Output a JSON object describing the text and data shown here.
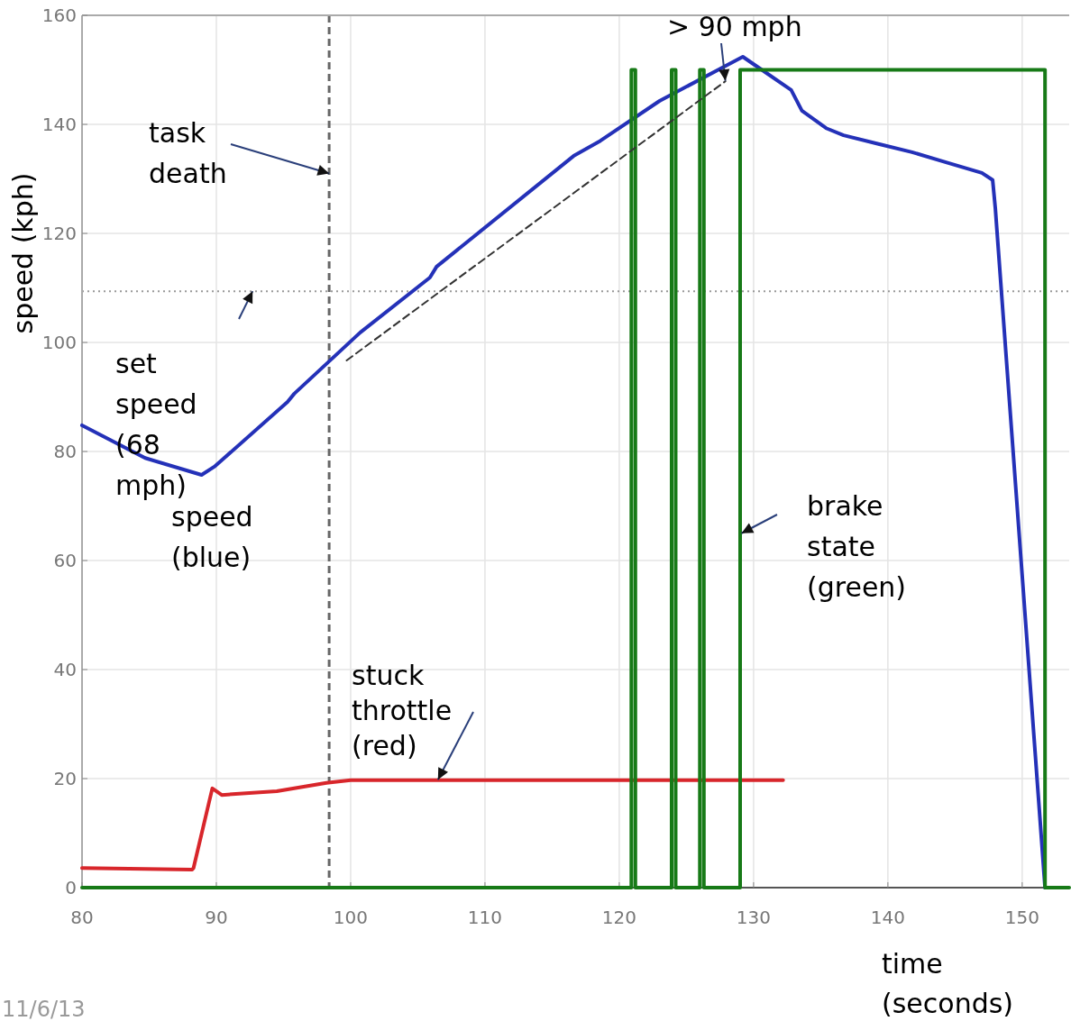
{
  "chart_data": {
    "type": "line",
    "xlabel": "time (seconds)",
    "ylabel": "speed (kph)",
    "xlim": [
      80,
      153.5
    ],
    "ylim": [
      0,
      160
    ],
    "xticks": [
      80,
      90,
      100,
      110,
      120,
      130,
      140,
      150
    ],
    "yticks": [
      0,
      20,
      40,
      60,
      80,
      100,
      120,
      140,
      160
    ],
    "grid": true,
    "marker": "none",
    "series": [
      {
        "color": "#2431b8",
        "x": [
          80,
          84.7,
          88.9,
          89.9,
          95.3,
          95.8,
          100.7,
          105.9,
          106.4,
          116.6,
          118.6,
          123,
          127.9,
          129.2,
          130.2,
          132.8,
          133.6,
          135.4,
          136.7,
          139.3,
          141.8,
          144.5,
          147,
          147.8,
          148,
          151.7
        ],
        "values": [
          84.8,
          78.8,
          75.7,
          77.3,
          89.1,
          90.6,
          101.8,
          111.9,
          113.9,
          134.2,
          137,
          144.3,
          150.7,
          152.4,
          150.7,
          146.3,
          142.5,
          139.3,
          138,
          136.4,
          134.9,
          132.9,
          131.1,
          129.8,
          124.6,
          0
        ]
      },
      {
        "color": "#d8262b",
        "x": [
          80,
          88.2,
          88.3,
          89.7,
          90.4,
          94.5,
          98.2,
          100,
          132.2
        ],
        "values": [
          3.6,
          3.3,
          3.6,
          18.2,
          17,
          17.7,
          19.2,
          19.7,
          19.7
        ]
      },
      {
        "type": "step",
        "color": "#177a17",
        "x": [
          80,
          120.9,
          121.2,
          123.9,
          124.2,
          126,
          126.3,
          129,
          151.7,
          153.5
        ],
        "values": [
          0,
          150,
          0,
          150,
          0,
          150,
          0,
          150,
          0,
          0
        ]
      },
      {
        "color": "#333333",
        "line_style": "dashed",
        "x": [
          99.7,
          127.9
        ],
        "values": [
          96.7,
          147.9
        ]
      }
    ],
    "ref_lines": [
      {
        "axis": "y",
        "value": 109.4,
        "color": "#999999",
        "line_style": "dotted"
      },
      {
        "axis": "x",
        "value": 98.4,
        "color": "#666666",
        "line_style": "dashed"
      }
    ],
    "annotations": [
      {
        "text": "task death",
        "x": 98.4,
        "y": 131
      },
      {
        "text": "set speed (68 mph)",
        "x": 92.7,
        "y": 109.4
      },
      "speed (blue)",
      {
        "text": "> 90 mph",
        "x": 127.9,
        "y": 148
      },
      {
        "text": "brake state (green)",
        "x": 129.1,
        "y": 65
      },
      {
        "text": "stuck throttle (red)",
        "x": 106.5,
        "y": 19.8
      },
      "11/6/13"
    ]
  }
}
